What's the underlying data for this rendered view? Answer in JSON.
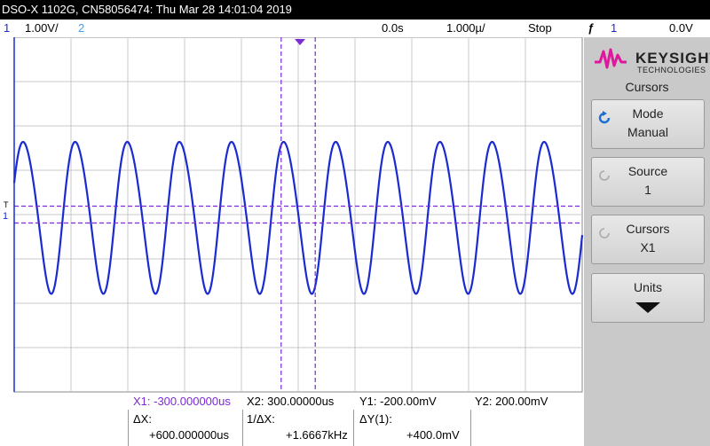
{
  "title": "DSO-X 1102G, CN58056474: Thu Mar 28 14:01:04 2019",
  "status": {
    "ch1_number": "1",
    "ch1_scale": "1.00V/",
    "ch2_number": "2",
    "horizontal_position": "0.0s",
    "horizontal_scale": "1.000µ/",
    "run_state": "Stop",
    "trigger_icon": "ƒ",
    "trigger_channel": "1",
    "trigger_level": "0.0V"
  },
  "markers": {
    "ch1_marker": "1",
    "trigger_marker": "T"
  },
  "panel": {
    "logo_main": "KEYSIGHT",
    "logo_sub": "TECHNOLOGIES",
    "menu_title": "Cursors",
    "softkeys": [
      {
        "line1": "Mode",
        "line2": "Manual"
      },
      {
        "line1": "Source",
        "line2": "1"
      },
      {
        "line1": "Cursors",
        "line2": "X1"
      },
      {
        "line1": "Units",
        "line2": ""
      }
    ]
  },
  "readout": {
    "x1": "X1: -300.000000us",
    "x2": "X2: 300.00000us",
    "y1": "Y1: -200.00mV",
    "y2": "Y2: 200.00mV",
    "dx_label": "ΔX:",
    "dx_value": "+600.000000us",
    "inv_dx_label": "1/ΔX:",
    "inv_dx_value": "+1.6667kHz",
    "dy_label": "ΔY(1):",
    "dy_value": "+400.0mV"
  },
  "colors": {
    "ch1": "#1a2bd1",
    "ch2": "#3aa0ff",
    "cursor": "#7a2bd6",
    "logo_accent": "#e0169c"
  },
  "waveform": {
    "cycles_on_screen": 10.9,
    "amplitude_divisions": 1.7,
    "offset_divisions": 0.0
  }
}
